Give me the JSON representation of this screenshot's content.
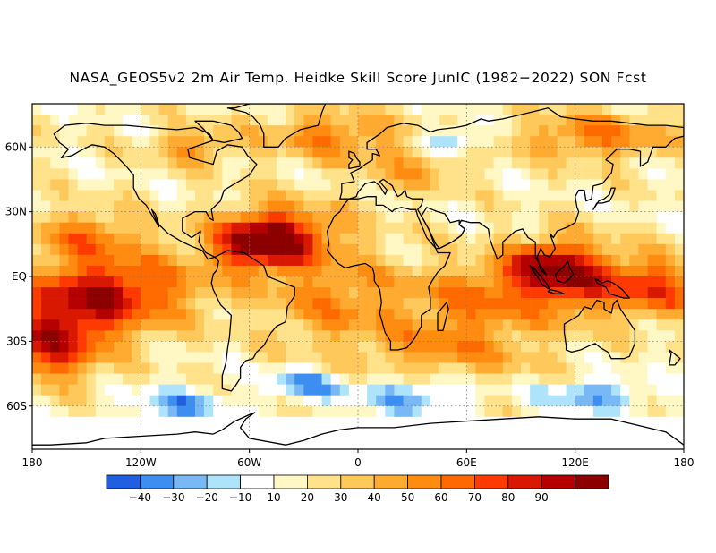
{
  "title": "NASA_GEOS5v2 2m Air Temp. Heidke Skill Score JunIC (1982−2022) SON Fcst",
  "map": {
    "lon_range": [
      -180,
      180
    ],
    "lat_range": [
      -80,
      80
    ],
    "gridlines": "dotted",
    "lat_ticks": [
      {
        "value": 60,
        "label": "60N"
      },
      {
        "value": 30,
        "label": "30N"
      },
      {
        "value": 0,
        "label": "EQ"
      },
      {
        "value": -30,
        "label": "30S"
      },
      {
        "value": -60,
        "label": "60S"
      }
    ],
    "lon_ticks": [
      {
        "value": -180,
        "label": "180"
      },
      {
        "value": -120,
        "label": "120W"
      },
      {
        "value": -60,
        "label": "60W"
      },
      {
        "value": 0,
        "label": "0"
      },
      {
        "value": 60,
        "label": "60E"
      },
      {
        "value": 120,
        "label": "120E"
      },
      {
        "value": 180,
        "label": "180"
      }
    ],
    "land_outline_color": "#000000"
  },
  "colorbar": {
    "bins": [
      {
        "color": "#1f5fe0"
      },
      {
        "color": "#3c8ff0"
      },
      {
        "color": "#78b8f5"
      },
      {
        "color": "#aee4fb"
      },
      {
        "color": "#ffffff"
      },
      {
        "color": "#fff8c4"
      },
      {
        "color": "#ffe28a"
      },
      {
        "color": "#ffc85a"
      },
      {
        "color": "#ffaa30"
      },
      {
        "color": "#ff8c10"
      },
      {
        "color": "#ff6a00"
      },
      {
        "color": "#ff3a00"
      },
      {
        "color": "#d81800"
      },
      {
        "color": "#b40000"
      },
      {
        "color": "#8c0000"
      }
    ],
    "labels": [
      "−40",
      "−30",
      "−20",
      "−10",
      "10",
      "20",
      "30",
      "40",
      "50",
      "60",
      "70",
      "80",
      "90"
    ]
  }
}
